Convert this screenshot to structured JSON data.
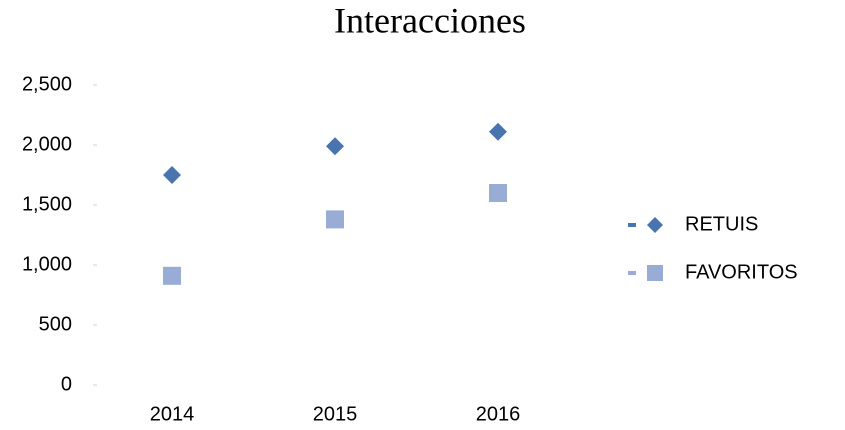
{
  "chart_data": {
    "type": "scatter",
    "title": "Interacciones",
    "categories": [
      "2014",
      "2015",
      "2016"
    ],
    "series": [
      {
        "name": "RETUIS",
        "color": "#4a74ad",
        "marker": "diamond",
        "values": [
          1750,
          1990,
          2110
        ]
      },
      {
        "name": "FAVORITOS",
        "color": "#98acd6",
        "marker": "square",
        "values": [
          910,
          1380,
          1600
        ]
      }
    ],
    "ylim": [
      0,
      2500
    ],
    "yticks": [
      0,
      500,
      {
        "value": 1000,
        "label": "1,000"
      },
      {
        "value": 1500,
        "label": "1,500"
      },
      {
        "value": 2000,
        "label": "2,000"
      },
      {
        "value": 2500,
        "label": "2,500"
      }
    ],
    "grid": false,
    "legend": "right"
  }
}
